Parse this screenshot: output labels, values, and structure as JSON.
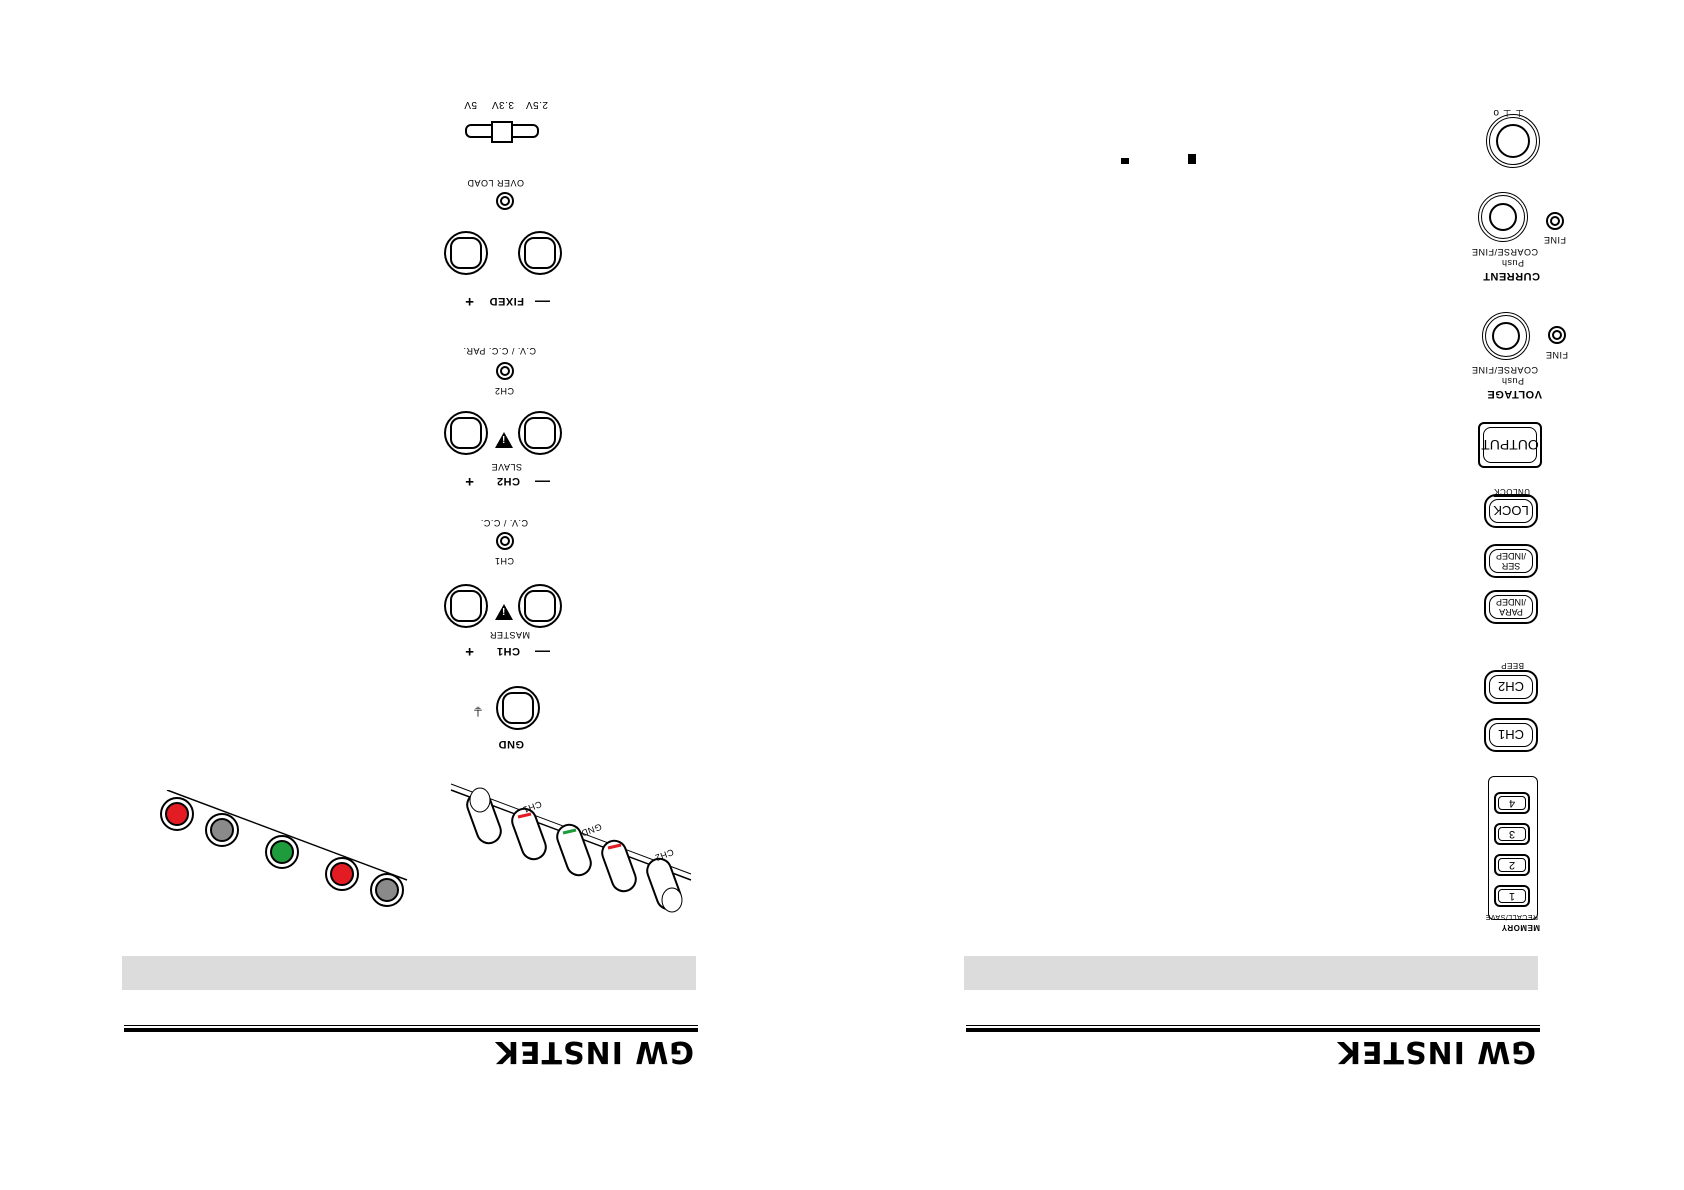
{
  "left_page": {
    "panel_labels": {
      "voltage_select": [
        "2.5V",
        "3.3V",
        "5V"
      ],
      "overload": "OVER LOAD",
      "fixed": "FIXED",
      "cv_cc_par": "C.V. / C.C. PAR.",
      "ch2_led": "CH2",
      "slave": "SLAVE",
      "ch2": "CH2",
      "cv_cc": "C.V. / C.C.",
      "ch1_led": "CH1",
      "master": "MASTER",
      "ch1": "CH1",
      "gnd": "GND",
      "plus": "+",
      "minus": "—"
    },
    "terminal_labels": {
      "ch1": "CH1",
      "gnd": "GND",
      "ch2": "CH2",
      "plus": "+",
      "minus": "–"
    },
    "brand": "GW INSTEK"
  },
  "right_page": {
    "panel_labels": {
      "current": "CURRENT",
      "current_push": "Push",
      "current_coarse_fine": "COARSE/FINE",
      "current_fine_led": "FINE",
      "voltage": "VOLTAGE",
      "voltage_push": "Push",
      "voltage_coarse_fine": "COARSE/FINE",
      "voltage_fine_led": "FINE",
      "output": "OUTPUT",
      "lock": "LOCK",
      "unlock": "UNLOCK",
      "ser_indep": [
        "SER",
        "/INDEP"
      ],
      "para_indep": [
        "PARA",
        "/INDEP"
      ],
      "ch2": "CH2",
      "beep": "BEEP",
      "ch1": "CH1",
      "memory_keys": [
        "1",
        "2",
        "3",
        "4"
      ],
      "memory": "MEMORY",
      "recall_save": "RECALL/SAVE"
    },
    "brand": "GW INSTEK"
  },
  "colors": {
    "terminal_red": "#e31b23",
    "terminal_black": "#8a8a8a",
    "terminal_green": "#1e9b3a",
    "band_grey": "#dcdcdc"
  }
}
